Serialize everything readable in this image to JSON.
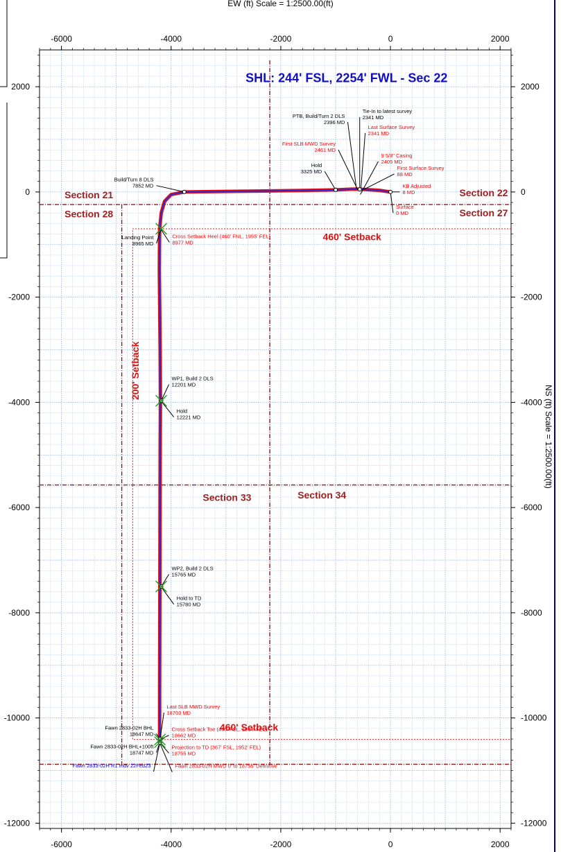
{
  "chart_data": {
    "type": "line",
    "xlabel": "EW (ft) Scale = 1:2500.00(ft)",
    "ylabel": "NS (ft) Scale = 1:2500.00(ft)",
    "xlim": [
      -6400,
      2200
    ],
    "ylim": [
      -12100,
      2700
    ],
    "grid": true,
    "x_ticks": [
      -6000,
      -4000,
      -2000,
      0,
      2000
    ],
    "y_ticks": [
      2000,
      0,
      -2000,
      -4000,
      -6000,
      -8000,
      -10000,
      -12000
    ],
    "x_tick_labels": [
      "-6000",
      "-4000",
      "-2000",
      "0",
      "2000"
    ],
    "y_tick_labels": [
      "2000",
      "0",
      "-2000",
      "-4000",
      "-6000",
      "-8000",
      "-10000",
      "-12000"
    ],
    "y_tick_labels_right": [
      "2000",
      "0",
      "-2000",
      "-4000",
      "-6000",
      "-8000",
      "-10000",
      "-12000"
    ],
    "header_label": "SHL: 244' FSL, 2254' FWL - Sec 22",
    "well_path": {
      "x": [
        0,
        -200,
        -500,
        -650,
        -1000,
        -1500,
        -2200,
        -3000,
        -3760,
        -4000,
        -4120,
        -4180,
        -4210,
        -4215,
        -4200,
        -4195,
        -4200,
        -4205,
        -4210,
        -4210,
        -4205
      ],
      "y": [
        0,
        30,
        50,
        55,
        40,
        30,
        20,
        10,
        0,
        -50,
        -180,
        -400,
        -700,
        -1500,
        -3000,
        -3970,
        -5000,
        -7500,
        -9500,
        -10400,
        -10470
      ]
    },
    "survey_points": [
      {
        "x": 0,
        "y": 0,
        "label_lines": [
          "Surface",
          "0 MD"
        ],
        "color": "#ff0000"
      },
      {
        "x": -560,
        "y": 50,
        "label_lines": [
          "Tie-In to latest survey",
          "2341 MD"
        ],
        "color": "#000000"
      },
      {
        "x": -1000,
        "y": 40,
        "label_lines": [
          "Hold",
          "3325 MD"
        ],
        "color": "#000000"
      },
      {
        "x": -3760,
        "y": 0,
        "label_lines": [
          "Build/Turn 8 DLS",
          "7852 MD"
        ],
        "color": "#000000"
      },
      {
        "x": -4180,
        "y": -3970,
        "label_lines": [
          "WP1, Build 2 DLS",
          "12201 MD"
        ],
        "color": "#000000"
      },
      {
        "x": -4180,
        "y": -7500,
        "label_lines": [
          "WP2, Build 2 DLS",
          "15765 MD"
        ],
        "color": "#000000"
      },
      {
        "x": -4205,
        "y": -10400,
        "label_lines": [
          "Fawn 2833-02H BHL",
          "18647 MD"
        ],
        "color": "#000000"
      },
      {
        "x": -4205,
        "y": -10470,
        "label_lines": [
          "Projection to TD (367' FSL, 1952' FEL)",
          "18755 MD"
        ],
        "color": "#ff0000"
      }
    ],
    "annotations": [
      {
        "lines": [
          "PTB, Build/Turn 2 DLS",
          "2396 MD"
        ],
        "color": "#000000",
        "align": "end",
        "tx": -830,
        "ty": 1410,
        "ax": -620,
        "ay": 60
      },
      {
        "lines": [
          "Tie-In to latest survey",
          "2341 MD"
        ],
        "color": "#000000",
        "align": "start",
        "tx": -510,
        "ty": 1500,
        "ax": -560,
        "ay": 60
      },
      {
        "lines": [
          "Last Surface Survey",
          "2341 MD"
        ],
        "color": "#ff0000",
        "align": "start",
        "tx": -410,
        "ty": 1200,
        "ax": -540,
        "ay": 50
      },
      {
        "lines": [
          "First SLB MWD Survey",
          "2461 MD"
        ],
        "color": "#ff0000",
        "align": "end",
        "tx": -1000,
        "ty": 880,
        "ax": -600,
        "ay": 50
      },
      {
        "lines": [
          "9 5/8\" Casing",
          "2405 MD"
        ],
        "color": "#ff0000",
        "align": "start",
        "tx": -170,
        "ty": 660,
        "ax": -550,
        "ay": -50
      },
      {
        "lines": [
          "Hold",
          "3325 MD"
        ],
        "color": "#000000",
        "align": "end",
        "tx": -1250,
        "ty": 470,
        "ax": -1000,
        "ay": 40
      },
      {
        "lines": [
          "First Surface Survey",
          "88 MD"
        ],
        "color": "#ff0000",
        "align": "start",
        "tx": 120,
        "ty": 420,
        "ax": -480,
        "ay": 50
      },
      {
        "lines": [
          "KB Adjusted",
          "8 MD"
        ],
        "color": "#ff0000",
        "align": "start",
        "tx": 220,
        "ty": 80,
        "ax": 0,
        "ay": 0
      },
      {
        "lines": [
          "Surface",
          "0 MD"
        ],
        "color": "#ff0000",
        "align": "start",
        "tx": 100,
        "ty": -320,
        "ax": 0,
        "ay": 0
      },
      {
        "lines": [
          "Build/Turn 8 DLS",
          "7852 MD"
        ],
        "color": "#000000",
        "align": "end",
        "tx": -4320,
        "ty": 200,
        "ax": -3760,
        "ay": 0
      },
      {
        "lines": [
          "Landing Point",
          "8965 MD"
        ],
        "color": "#000000",
        "align": "end",
        "tx": -4320,
        "ty": -900,
        "ax": -4180,
        "ay": -700
      },
      {
        "lines": [
          "Cross Setback Heel (460' FNL, 1955' FEL)",
          "8977 MD"
        ],
        "color": "#ff0000",
        "align": "start",
        "tx": -3980,
        "ty": -880,
        "ax": -4180,
        "ay": -720
      },
      {
        "lines": [
          "WP1, Build 2 DLS",
          "12201 MD"
        ],
        "color": "#000000",
        "align": "start",
        "tx": -3990,
        "ty": -3580,
        "ax": -4180,
        "ay": -3970
      },
      {
        "lines": [
          "Hold",
          "12221 MD"
        ],
        "color": "#000000",
        "align": "start",
        "tx": -3900,
        "ty": -4200,
        "ax": -4180,
        "ay": -3980
      },
      {
        "lines": [
          "WP2, Build 2 DLS",
          "15765 MD"
        ],
        "color": "#000000",
        "align": "start",
        "tx": -3990,
        "ty": -7190,
        "ax": -4180,
        "ay": -7500
      },
      {
        "lines": [
          "Hold to TD",
          "15780 MD"
        ],
        "color": "#000000",
        "align": "start",
        "tx": -3900,
        "ty": -7760,
        "ax": -4180,
        "ay": -7510
      },
      {
        "lines": [
          "Last SLB MWD Survey",
          "18703 MD"
        ],
        "color": "#ff0000",
        "align": "start",
        "tx": -4080,
        "ty": -9820,
        "ax": -4205,
        "ay": -10420
      },
      {
        "lines": [
          "Fawn 2833-02H BHL",
          "18647 MD"
        ],
        "color": "#000000",
        "align": "end",
        "tx": -4320,
        "ty": -10220,
        "ax": -4205,
        "ay": -10400
      },
      {
        "lines": [
          "Cross Setback Toe (460' FSL, 1954' FEL)",
          "18662 MD"
        ],
        "color": "#ff0000",
        "align": "start",
        "tx": -3990,
        "ty": -10250,
        "ax": -4205,
        "ay": -10410
      },
      {
        "lines": [
          "Fawn 2833-02H BHL+100ft",
          "18747 MD"
        ],
        "color": "#000000",
        "align": "end",
        "tx": -4320,
        "ty": -10580,
        "ax": -4205,
        "ay": -10460
      },
      {
        "lines": [
          "Projection to TD (367' FSL, 1952' FEL)",
          "18755 MD"
        ],
        "color": "#ff0000",
        "align": "start",
        "tx": -3990,
        "ty": -10590,
        "ax": -4205,
        "ay": -10470
      },
      {
        "lines": [
          "Fawn 2833-02H R1 mdv 22Feb23"
        ],
        "color": "#0000ff",
        "align": "end",
        "tx": -4370,
        "ty": -10940,
        "ax": -4205,
        "ay": -10470
      },
      {
        "lines": [
          "Fawn 2833-02H MWD 0' to 18755' Definitive"
        ],
        "color": "#ff0000",
        "align": "start",
        "tx": -3930,
        "ty": -10950,
        "ax": -4205,
        "ay": -10480
      }
    ],
    "section_labels": [
      {
        "text": "Section 21",
        "x": -5500,
        "y": -120,
        "anchor": "middle"
      },
      {
        "text": "Section 28",
        "x": -5500,
        "y": -480,
        "anchor": "middle"
      },
      {
        "text": "Section 22",
        "x": 1700,
        "y": -80,
        "anchor": "middle"
      },
      {
        "text": "Section 27",
        "x": 1700,
        "y": -460,
        "anchor": "middle"
      },
      {
        "text": "Section 33",
        "x": -2980,
        "y": -5870,
        "anchor": "middle"
      },
      {
        "text": "Section 34",
        "x": -1250,
        "y": -5830,
        "anchor": "middle"
      }
    ],
    "setback_labels": [
      {
        "text": "460' Setback",
        "x": -700,
        "y": -920,
        "anchor": "middle",
        "rotate": false
      },
      {
        "text": "460' Setback",
        "x": -2580,
        "y": -10240,
        "anchor": "middle",
        "rotate": false
      },
      {
        "text": "200' Setback",
        "x": -4590,
        "y": -3400,
        "anchor": "middle",
        "rotate": true
      }
    ]
  }
}
